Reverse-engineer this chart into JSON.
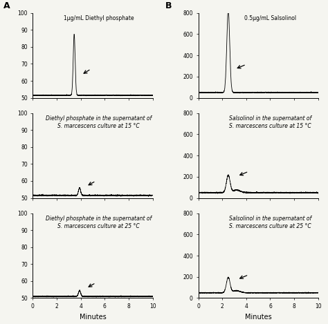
{
  "col_A_titles": [
    "1µg/mL Diethyl phosphate",
    "Diethyl phosphate in the supernatant of\nS. marcescens culture at 15 °C",
    "Diethyl phosphate in the supernatant of\nS. marcescens culture at 25 °C"
  ],
  "col_B_titles": [
    "0.5µg/mL Salsolinol",
    "Salsolinol in the supernatant of\nS. marcescens culture at 15 °C",
    "Salsolinol in the supernatant of\nS. marcescens culture at 25 °C"
  ],
  "col_A_ylim": [
    50,
    100
  ],
  "col_A_yticks": [
    50,
    60,
    70,
    80,
    90,
    100
  ],
  "col_B_ylim": [
    0,
    800
  ],
  "col_B_yticks": [
    0,
    200,
    400,
    600,
    800
  ],
  "xlim": [
    0,
    10
  ],
  "xticks": [
    0,
    2,
    4,
    6,
    8,
    10
  ],
  "xlabel": "Minutes",
  "background_color": "#f5f5f0"
}
